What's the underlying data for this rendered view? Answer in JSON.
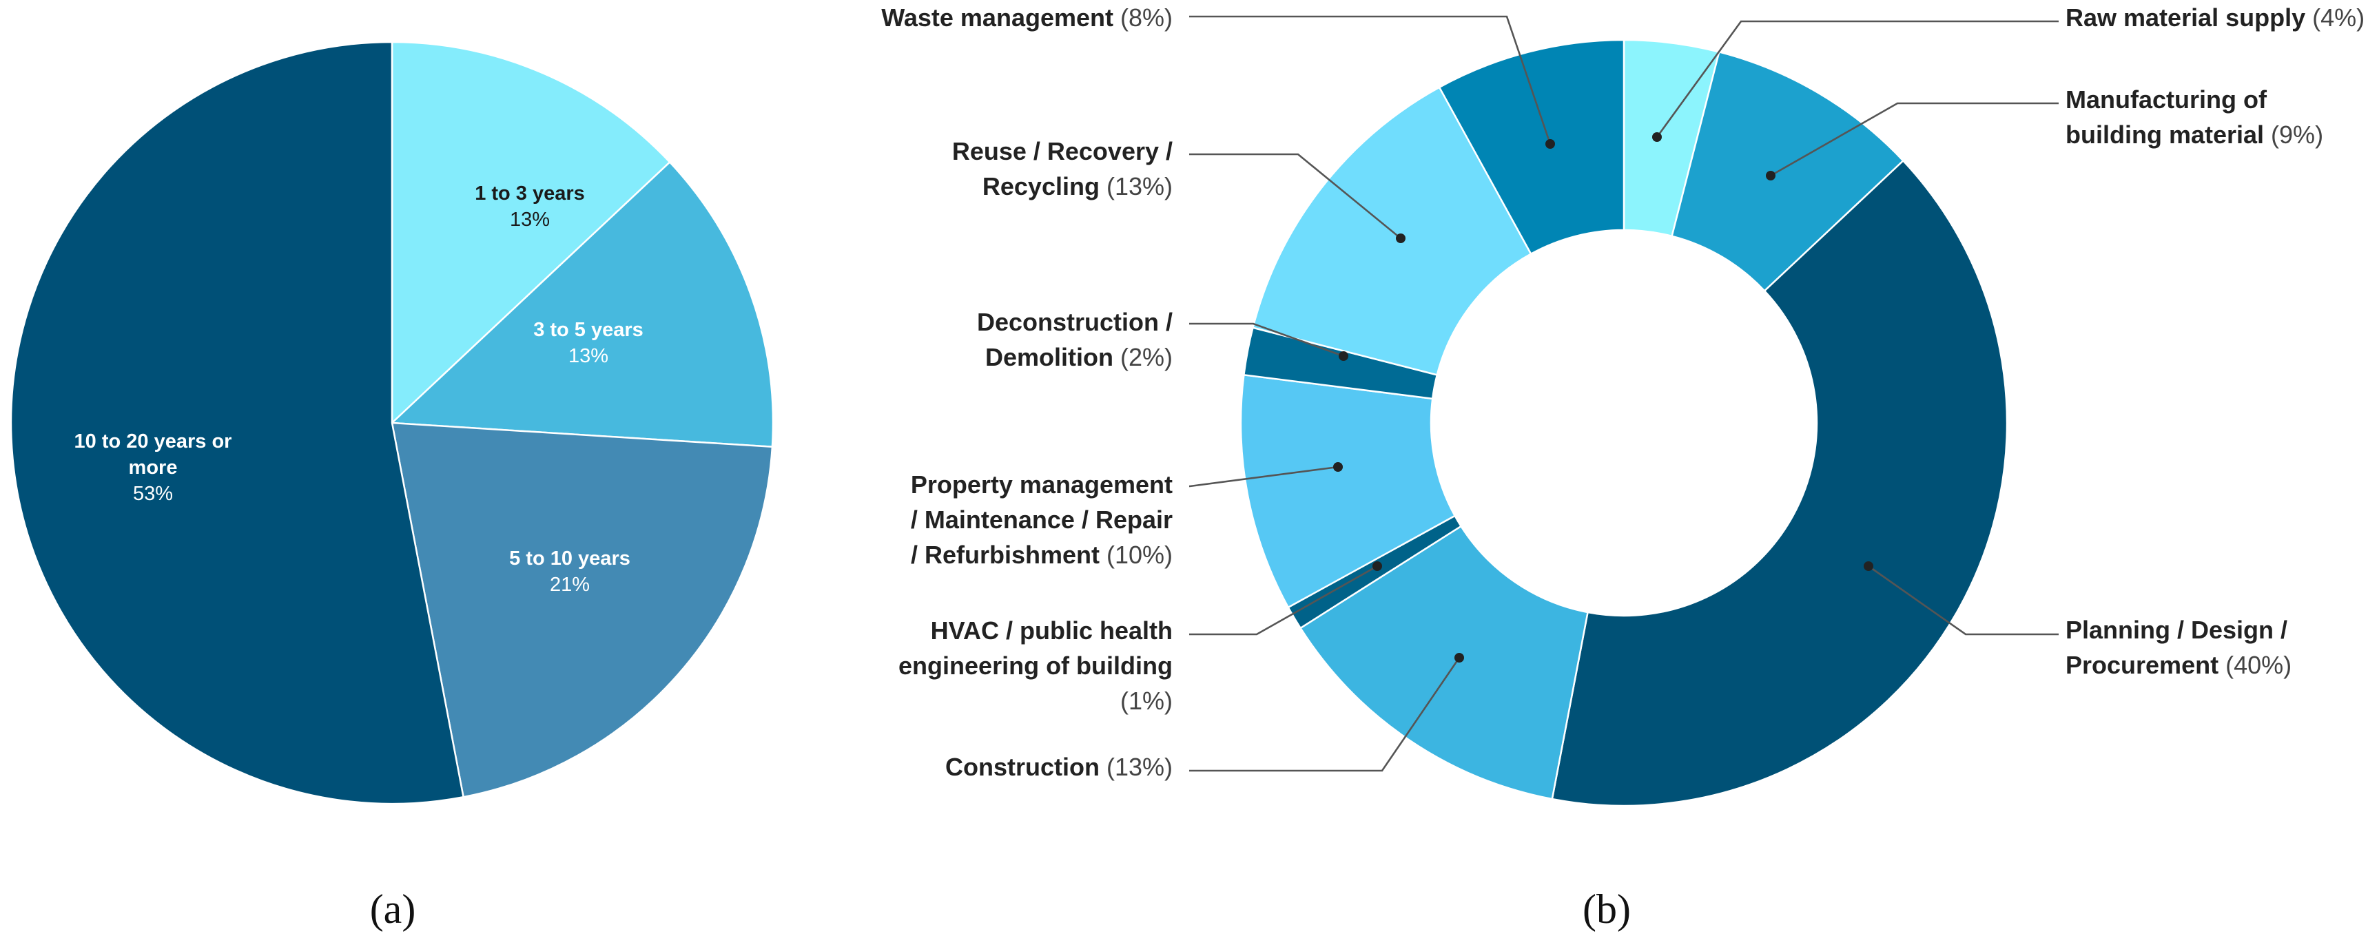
{
  "chart_data": [
    {
      "type": "pie",
      "panel_label": "(a)",
      "slices": [
        {
          "label": "1 to 3 years",
          "pct_label": "13%",
          "value": 13,
          "color": "#84ECFC",
          "text_color": "#1a1a1a"
        },
        {
          "label": "3 to 5 years",
          "pct_label": "13%",
          "value": 13,
          "color": "#47B9DE",
          "text_color": "#ffffff"
        },
        {
          "label": "5 to 10 years",
          "pct_label": "21%",
          "value": 21,
          "color": "#438AB4",
          "text_color": "#ffffff"
        },
        {
          "label": "10 to 20 years or more",
          "label_lines": [
            "10 to 20 years or",
            "more"
          ],
          "pct_label": "53%",
          "value": 53,
          "color": "#005077",
          "text_color": "#ffffff"
        }
      ]
    },
    {
      "type": "pie",
      "donut": true,
      "panel_label": "(b)",
      "slices": [
        {
          "label": "Raw material supply",
          "label_lines": [
            "Raw material supply"
          ],
          "pct_label": "(4%)",
          "value": 4,
          "color": "#8CF4FD"
        },
        {
          "label": "Manufacturing of building material",
          "label_lines": [
            "Manufacturing of",
            "building material"
          ],
          "pct_label": "(9%)",
          "value": 9,
          "color": "#1CA1CE"
        },
        {
          "label": "Planning / Design / Procurement",
          "label_lines": [
            "Planning / Design /",
            "Procurement"
          ],
          "pct_label": "(40%)",
          "value": 40,
          "color": "#005176"
        },
        {
          "label": "Construction",
          "label_lines": [
            "Construction"
          ],
          "pct_label": "(13%)",
          "value": 13,
          "color": "#3CB5E1"
        },
        {
          "label": "HVAC / public health engineering of building",
          "label_lines": [
            "HVAC / public health",
            "engineering of building"
          ],
          "pct_label": "(1%)",
          "value": 1,
          "color": "#006289"
        },
        {
          "label": "Property management / Maintenance / Repair / Refurbishment",
          "label_lines": [
            "Property management",
            "/ Maintenance / Repair",
            "/ Refurbishment"
          ],
          "pct_label": "(10%)",
          "value": 10,
          "color": "#56C8F4"
        },
        {
          "label": "Deconstruction / Demolition",
          "label_lines": [
            "Deconstruction /",
            "Demolition"
          ],
          "pct_label": "(2%)",
          "value": 2,
          "color": "#006B95"
        },
        {
          "label": "Reuse / Recovery / Recycling",
          "label_lines": [
            "Reuse / Recovery /",
            "Recycling"
          ],
          "pct_label": "(13%)",
          "value": 13,
          "color": "#70DDFD"
        },
        {
          "label": "Waste management",
          "label_lines": [
            "Waste management"
          ],
          "pct_label": "(8%)",
          "value": 8,
          "color": "#0085B4"
        }
      ]
    }
  ]
}
